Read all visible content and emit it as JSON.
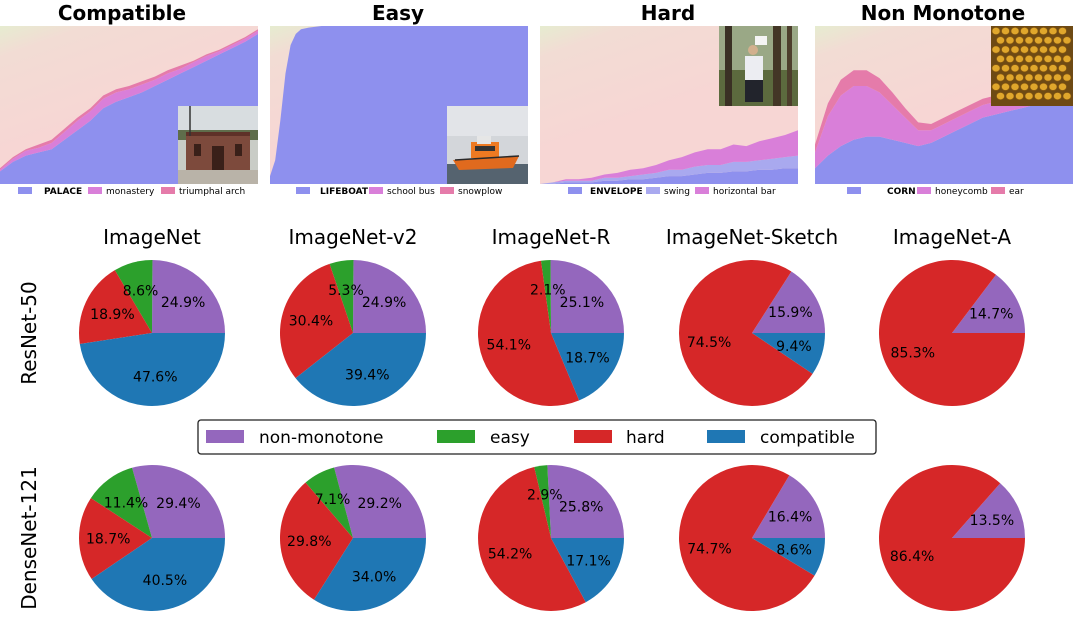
{
  "chart_data": [
    {
      "type": "area",
      "title": "Compatible",
      "inset": "photo-palace",
      "legend": [
        "PALACE",
        "monastery",
        "triumphal arch"
      ],
      "legend_colors": [
        "#8e90ee",
        "#d97fd9",
        "#e57baa"
      ],
      "x": [
        0,
        0.05,
        0.1,
        0.15,
        0.2,
        0.25,
        0.3,
        0.35,
        0.4,
        0.45,
        0.5,
        0.55,
        0.6,
        0.65,
        0.7,
        0.75,
        0.8,
        0.85,
        0.9,
        0.95,
        1
      ],
      "series": [
        {
          "values": [
            0.08,
            0.14,
            0.18,
            0.2,
            0.22,
            0.28,
            0.34,
            0.4,
            0.48,
            0.52,
            0.55,
            0.58,
            0.62,
            0.66,
            0.7,
            0.74,
            0.78,
            0.82,
            0.86,
            0.9,
            0.95
          ]
        },
        {
          "values": [
            0.01,
            0.02,
            0.03,
            0.03,
            0.04,
            0.05,
            0.06,
            0.06,
            0.06,
            0.06,
            0.05,
            0.05,
            0.04,
            0.04,
            0.03,
            0.03,
            0.03,
            0.02,
            0.02,
            0.02,
            0.02
          ]
        },
        {
          "values": [
            0.01,
            0.01,
            0.01,
            0.02,
            0.02,
            0.02,
            0.02,
            0.02,
            0.02,
            0.02,
            0.02,
            0.02,
            0.02,
            0.02,
            0.02,
            0.01,
            0.01,
            0.01,
            0.01,
            0.01,
            0.01
          ]
        }
      ]
    },
    {
      "type": "area",
      "title": "Easy",
      "inset": "photo-lifeboat",
      "legend": [
        "LIFEBOAT",
        "school bus",
        "snowplow"
      ],
      "legend_colors": [
        "#8e90ee",
        "#d97fd9",
        "#e57baa"
      ],
      "x": [
        0,
        0.02,
        0.04,
        0.06,
        0.08,
        0.1,
        0.12,
        0.15,
        0.2,
        0.3,
        0.4,
        0.5,
        0.6,
        0.7,
        0.8,
        0.9,
        1
      ],
      "series": [
        {
          "values": [
            0.05,
            0.15,
            0.4,
            0.7,
            0.88,
            0.95,
            0.98,
            0.99,
            1,
            1,
            1,
            1,
            1,
            1,
            1,
            1,
            1
          ]
        },
        {
          "values": [
            0,
            0,
            0,
            0,
            0,
            0,
            0,
            0,
            0,
            0,
            0,
            0,
            0,
            0,
            0,
            0,
            0
          ]
        },
        {
          "values": [
            0,
            0,
            0,
            0,
            0,
            0,
            0,
            0,
            0,
            0,
            0,
            0,
            0,
            0,
            0,
            0,
            0
          ]
        }
      ]
    },
    {
      "type": "area",
      "title": "Hard",
      "inset": "photo-envelope",
      "legend": [
        "ENVELOPE",
        "swing",
        "horizontal bar"
      ],
      "legend_colors": [
        "#8e90ee",
        "#a9a9ef",
        "#d97fd9"
      ],
      "x": [
        0,
        0.05,
        0.1,
        0.15,
        0.2,
        0.25,
        0.3,
        0.35,
        0.4,
        0.45,
        0.5,
        0.55,
        0.6,
        0.65,
        0.7,
        0.75,
        0.8,
        0.85,
        0.9,
        0.95,
        1
      ],
      "series": [
        {
          "values": [
            0,
            0,
            0.01,
            0.01,
            0.01,
            0.02,
            0.02,
            0.03,
            0.03,
            0.04,
            0.05,
            0.05,
            0.06,
            0.07,
            0.07,
            0.08,
            0.08,
            0.09,
            0.09,
            0.1,
            0.1
          ]
        },
        {
          "values": [
            0,
            0.01,
            0.01,
            0.01,
            0.01,
            0.02,
            0.02,
            0.02,
            0.03,
            0.03,
            0.04,
            0.04,
            0.05,
            0.05,
            0.05,
            0.06,
            0.06,
            0.06,
            0.07,
            0.07,
            0.08
          ]
        },
        {
          "values": [
            0,
            0,
            0.01,
            0.01,
            0.02,
            0.02,
            0.03,
            0.04,
            0.04,
            0.05,
            0.06,
            0.08,
            0.09,
            0.1,
            0.1,
            0.11,
            0.1,
            0.12,
            0.13,
            0.14,
            0.16
          ]
        }
      ]
    },
    {
      "type": "area",
      "title": "Non Monotone",
      "inset": "photo-corn",
      "legend": [
        "CORN",
        "honeycomb",
        "ear"
      ],
      "legend_colors": [
        "#8e90ee",
        "#d97fd9",
        "#e57baa"
      ],
      "x": [
        0,
        0.05,
        0.1,
        0.15,
        0.2,
        0.25,
        0.3,
        0.35,
        0.4,
        0.45,
        0.5,
        0.55,
        0.6,
        0.65,
        0.7,
        0.75,
        0.8,
        0.85,
        0.9,
        0.95,
        1
      ],
      "series": [
        {
          "values": [
            0.1,
            0.18,
            0.24,
            0.28,
            0.3,
            0.3,
            0.28,
            0.26,
            0.24,
            0.26,
            0.3,
            0.34,
            0.38,
            0.42,
            0.44,
            0.46,
            0.48,
            0.5,
            0.52,
            0.55,
            0.58
          ]
        },
        {
          "values": [
            0.1,
            0.25,
            0.32,
            0.34,
            0.32,
            0.28,
            0.22,
            0.16,
            0.1,
            0.08,
            0.08,
            0.08,
            0.08,
            0.08,
            0.08,
            0.07,
            0.07,
            0.06,
            0.06,
            0.06,
            0.06
          ]
        },
        {
          "values": [
            0.05,
            0.08,
            0.1,
            0.1,
            0.1,
            0.09,
            0.08,
            0.06,
            0.05,
            0.04,
            0.04,
            0.04,
            0.04,
            0.04,
            0.04,
            0.04,
            0.04,
            0.04,
            0.04,
            0.04,
            0.04
          ]
        }
      ]
    },
    {
      "type": "pie",
      "title": "ImageNet",
      "model": "ResNet-50",
      "categories": [
        "non-monotone",
        "easy",
        "hard",
        "compatible"
      ],
      "values": [
        24.9,
        8.6,
        18.9,
        47.6
      ],
      "labels": [
        "24.9%",
        "8.6%",
        "18.9%",
        "47.6%"
      ]
    },
    {
      "type": "pie",
      "title": "ImageNet-v2",
      "model": "ResNet-50",
      "categories": [
        "non-monotone",
        "easy",
        "hard",
        "compatible"
      ],
      "values": [
        24.9,
        5.3,
        30.4,
        39.4
      ],
      "labels": [
        "24.9%",
        "5.3%",
        "30.4%",
        "39.4%"
      ]
    },
    {
      "type": "pie",
      "title": "ImageNet-R",
      "model": "ResNet-50",
      "categories": [
        "non-monotone",
        "easy",
        "hard",
        "compatible"
      ],
      "values": [
        25.1,
        2.1,
        54.1,
        18.7
      ],
      "labels": [
        "25.1%",
        "2.1%",
        "54.1%",
        "18.7%"
      ]
    },
    {
      "type": "pie",
      "title": "ImageNet-Sketch",
      "model": "ResNet-50",
      "categories": [
        "non-monotone",
        "easy",
        "hard",
        "compatible"
      ],
      "values": [
        15.9,
        0,
        74.5,
        9.4
      ],
      "labels": [
        "15.9%",
        "",
        "74.5%",
        "9.4%"
      ]
    },
    {
      "type": "pie",
      "title": "ImageNet-A",
      "model": "ResNet-50",
      "categories": [
        "non-monotone",
        "easy",
        "hard",
        "compatible"
      ],
      "values": [
        14.7,
        0,
        85.3,
        0
      ],
      "labels": [
        "14.7%",
        "",
        "85.3%",
        ""
      ]
    },
    {
      "type": "pie",
      "title": "",
      "model": "DenseNet-121",
      "categories": [
        "non-monotone",
        "easy",
        "hard",
        "compatible"
      ],
      "values": [
        29.4,
        11.4,
        18.7,
        40.5
      ],
      "labels": [
        "29.4%",
        "11.4%",
        "18.7%",
        "40.5%"
      ]
    },
    {
      "type": "pie",
      "title": "",
      "model": "DenseNet-121",
      "categories": [
        "non-monotone",
        "easy",
        "hard",
        "compatible"
      ],
      "values": [
        29.2,
        7.1,
        29.8,
        34.0
      ],
      "labels": [
        "29.2%",
        "7.1%",
        "29.8%",
        "34.0%"
      ]
    },
    {
      "type": "pie",
      "title": "",
      "model": "DenseNet-121",
      "categories": [
        "non-monotone",
        "easy",
        "hard",
        "compatible"
      ],
      "values": [
        25.8,
        2.9,
        54.2,
        17.1
      ],
      "labels": [
        "25.8%",
        "2.9%",
        "54.2%",
        "17.1%"
      ]
    },
    {
      "type": "pie",
      "title": "",
      "model": "DenseNet-121",
      "categories": [
        "non-monotone",
        "easy",
        "hard",
        "compatible"
      ],
      "values": [
        16.4,
        0,
        74.7,
        8.6
      ],
      "labels": [
        "16.4%",
        "",
        "74.7%",
        "8.6%"
      ]
    },
    {
      "type": "pie",
      "title": "",
      "model": "DenseNet-121",
      "categories": [
        "non-monotone",
        "easy",
        "hard",
        "compatible"
      ],
      "values": [
        13.5,
        0,
        86.4,
        0
      ],
      "labels": [
        "13.5%",
        "",
        "86.4%",
        ""
      ]
    }
  ],
  "row_labels": [
    "ResNet-50",
    "DenseNet-121"
  ],
  "legend": {
    "items": [
      "non-monotone",
      "easy",
      "hard",
      "compatible"
    ],
    "colors": [
      "#9467bd",
      "#2ca02c",
      "#d62728",
      "#1f77b4"
    ],
    "placement": "center"
  },
  "colors": {
    "area_background": "#f6d8d6",
    "area_background_corner": "#e8ecd0"
  }
}
